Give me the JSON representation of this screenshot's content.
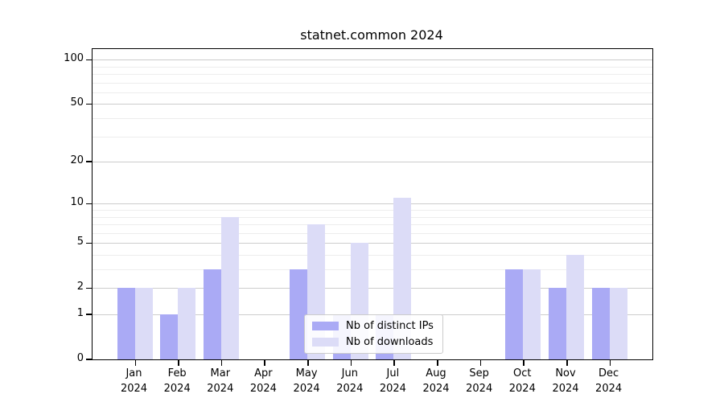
{
  "chart_data": {
    "type": "bar",
    "title": "statnet.common 2024",
    "categories": [
      "Jan",
      "Feb",
      "Mar",
      "Apr",
      "May",
      "Jun",
      "Jul",
      "Aug",
      "Sep",
      "Oct",
      "Nov",
      "Dec"
    ],
    "category_sublabel": "2024",
    "series": [
      {
        "name": "Nb of distinct IPs",
        "color": "#aaaaf5",
        "values": [
          2,
          1,
          3,
          0,
          3,
          1,
          1,
          0,
          0,
          3,
          2,
          2
        ]
      },
      {
        "name": "Nb of downloads",
        "color": "#dcdcf7",
        "values": [
          2,
          2,
          8,
          0,
          7,
          5,
          11,
          0,
          0,
          3,
          4,
          2
        ]
      }
    ],
    "y_scale": "log1p",
    "y_ticks": [
      0,
      1,
      2,
      5,
      10,
      20,
      50,
      100
    ],
    "y_minor_ticks": [
      3,
      4,
      6,
      7,
      8,
      9,
      30,
      40,
      60,
      70,
      80,
      90
    ],
    "ylim": [
      0,
      118
    ],
    "xlabel": "",
    "ylabel": "",
    "grid": true,
    "legend_position": "inside-bottom-center",
    "frame_color": "#000000",
    "major_grid_color": "#cccccc",
    "minor_grid_color": "#ededed"
  }
}
